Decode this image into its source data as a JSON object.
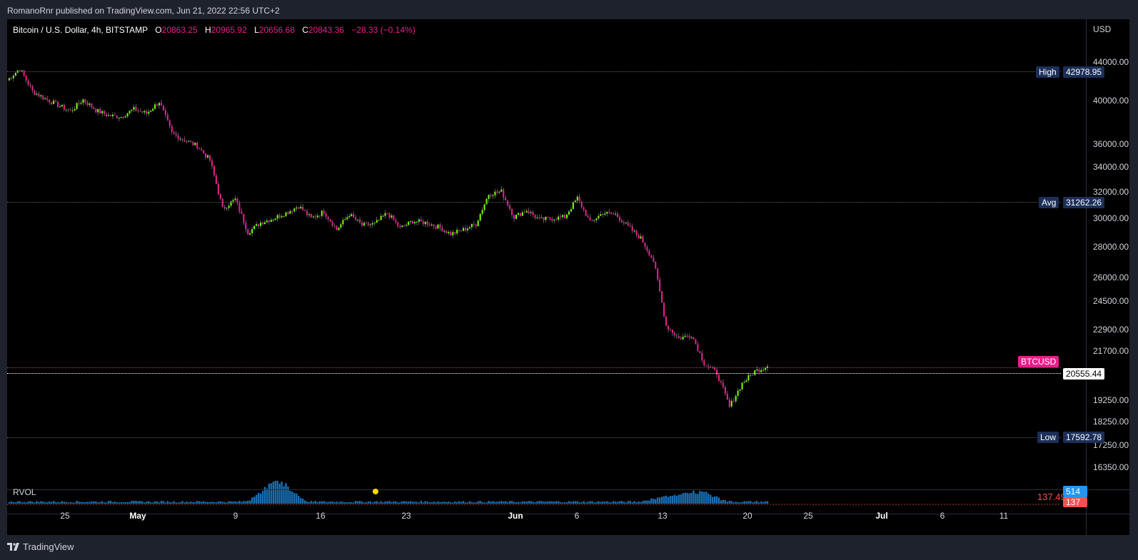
{
  "publisher_line": "RomanoRnr published on TradingView.com, Jun 21, 2022 22:56 UTC+2",
  "symbol": {
    "title": "Bitcoin / U.S. Dollar, 4h, BITSTAMP",
    "open_label": "O",
    "open": "20863.25",
    "high_label": "H",
    "high": "20965.92",
    "low_label": "L",
    "low": "20656.68",
    "close_label": "C",
    "close": "20843.36",
    "change": "−28.33 (−0.14%)"
  },
  "currency": "USD",
  "price_axis": [
    "44000.00",
    "40000.00",
    "36000.00",
    "34000.00",
    "32000.00",
    "30000.00",
    "28000.00",
    "26000.00",
    "24500.00",
    "22900.00",
    "21700.00",
    "19250.00",
    "18250.00",
    "17250.00",
    "16350.00"
  ],
  "badges": {
    "high_label": "High",
    "high_value": "42978.95",
    "avg_label": "Avg",
    "avg_value": "31262.26",
    "symbol_label": "BTCUSD",
    "last_value": "20555.44",
    "low_label": "Low",
    "low_value": "17592.78"
  },
  "indicator": {
    "name": "RVOL",
    "value": "137.49",
    "badge_volume": "514",
    "badge_rvol": "137"
  },
  "time_axis": [
    {
      "label": "25",
      "bold": false
    },
    {
      "label": "May",
      "bold": true
    },
    {
      "label": "9",
      "bold": false
    },
    {
      "label": "16",
      "bold": false
    },
    {
      "label": "23",
      "bold": false
    },
    {
      "label": "Jun",
      "bold": true
    },
    {
      "label": "6",
      "bold": false
    },
    {
      "label": "13",
      "bold": false
    },
    {
      "label": "20",
      "bold": false
    },
    {
      "label": "25",
      "bold": false
    },
    {
      "label": "Jul",
      "bold": true
    },
    {
      "label": "6",
      "bold": false
    },
    {
      "label": "11",
      "bold": false
    }
  ],
  "brand": "TradingView",
  "colors": {
    "up": "#76ff03",
    "down": "#e91e8c",
    "avg_badge": "#1c2f58",
    "symbol_badge": "#e91e8c",
    "volume": "#2196f3"
  },
  "chart_data": {
    "type": "candlestick",
    "interval": "4h",
    "y_scale": "log",
    "ylim": [
      16000,
      45000
    ],
    "price_path": [
      [
        "Apr 20",
        41600
      ],
      [
        "Apr 21",
        42800
      ],
      [
        "Apr 22",
        40500
      ],
      [
        "Apr 24",
        39800
      ],
      [
        "Apr 26",
        39200
      ],
      [
        "Apr 27",
        38600
      ],
      [
        "Apr 28",
        39700
      ],
      [
        "Apr 29",
        38700
      ],
      [
        "Apr 30",
        38200
      ],
      [
        "May 1",
        38100
      ],
      [
        "May 2",
        38800
      ],
      [
        "May 3",
        38400
      ],
      [
        "May 4",
        39500
      ],
      [
        "May 5",
        36600
      ],
      [
        "May 6",
        36000
      ],
      [
        "May 7",
        35500
      ],
      [
        "May 8",
        34300
      ],
      [
        "May 9",
        30500
      ],
      [
        "May 10",
        31200
      ],
      [
        "May 11",
        28800
      ],
      [
        "May 12",
        29500
      ],
      [
        "May 13",
        29800
      ],
      [
        "May 14",
        30200
      ],
      [
        "May 15",
        30700
      ],
      [
        "May 16",
        29800
      ],
      [
        "May 17",
        30300
      ],
      [
        "May 18",
        29000
      ],
      [
        "May 19",
        30100
      ],
      [
        "May 20",
        29300
      ],
      [
        "May 21",
        29400
      ],
      [
        "May 22",
        30200
      ],
      [
        "May 23",
        29100
      ],
      [
        "May 24",
        29600
      ],
      [
        "May 25",
        29500
      ],
      [
        "May 26",
        29200
      ],
      [
        "May 27",
        28700
      ],
      [
        "May 28",
        29000
      ],
      [
        "May 29",
        29400
      ],
      [
        "May 30",
        31600
      ],
      [
        "May 31",
        31800
      ],
      [
        "Jun 1",
        29900
      ],
      [
        "Jun 2",
        30400
      ],
      [
        "Jun 3",
        29700
      ],
      [
        "Jun 4",
        29800
      ],
      [
        "Jun 5",
        29900
      ],
      [
        "Jun 6",
        31300
      ],
      [
        "Jun 7",
        29500
      ],
      [
        "Jun 8",
        30200
      ],
      [
        "Jun 9",
        30100
      ],
      [
        "Jun 10",
        29200
      ],
      [
        "Jun 11",
        28400
      ],
      [
        "Jun 12",
        26900
      ],
      [
        "Jun 13",
        23000
      ],
      [
        "Jun 14",
        22300
      ],
      [
        "Jun 15",
        22500
      ],
      [
        "Jun 16",
        21000
      ],
      [
        "Jun 17",
        20500
      ],
      [
        "Jun 18",
        18900
      ],
      [
        "Jun 19",
        20000
      ],
      [
        "Jun 20",
        20600
      ],
      [
        "Jun 21",
        20840
      ]
    ],
    "levels": {
      "high": 42978.95,
      "avg": 31262.26,
      "last": 20555.44,
      "low": 17592.78
    },
    "rvol": 137.49,
    "volume": 514
  }
}
